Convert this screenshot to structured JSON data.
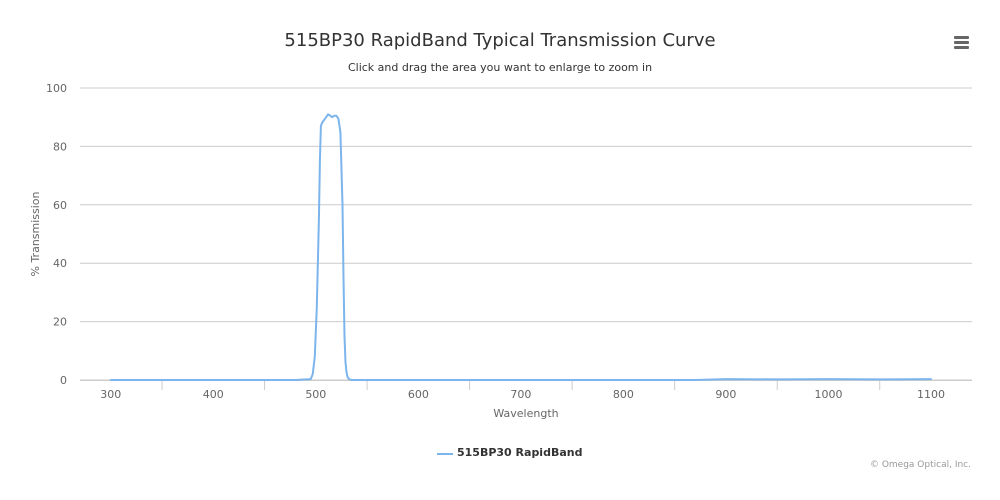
{
  "chart": {
    "title": "515BP30 RapidBand Typical Transmission Curve",
    "subtitle": "Click and drag the area you want to enlarge to zoom in",
    "menu_icon": "hamburger-menu-icon",
    "credits": "© Omega Optical, Inc.",
    "series_color": "#7cb5ec",
    "grid_color": "#cccccc"
  },
  "chart_data": {
    "type": "line",
    "title": "515BP30 RapidBand Typical Transmission Curve",
    "subtitle": "Click and drag the area you want to enlarge to zoom in",
    "xlabel": "Wavelength",
    "ylabel": "% Transmission",
    "xlim": [
      270,
      1140
    ],
    "ylim": [
      0,
      100
    ],
    "x_ticks": [
      300,
      400,
      500,
      600,
      700,
      800,
      900,
      1000,
      1100
    ],
    "y_ticks": [
      0,
      20,
      40,
      60,
      80,
      100
    ],
    "grid": true,
    "legend_position": "bottom-center",
    "series": [
      {
        "name": "515BP30 RapidBand",
        "color": "#7cb5ec",
        "x": [
          300,
          400,
          480,
          495,
          497,
          499,
          501,
          503,
          504,
          505,
          506,
          508,
          510,
          512,
          514,
          516,
          518,
          520,
          522,
          524,
          526,
          527,
          528,
          529,
          530,
          531,
          532,
          533,
          535,
          540,
          600,
          700,
          800,
          870,
          900,
          950,
          1000,
          1050,
          1100
        ],
        "y": [
          0,
          0,
          0,
          0.3,
          2,
          8,
          25,
          55,
          75,
          87,
          88,
          89,
          90,
          91,
          90.5,
          90,
          90.5,
          90.5,
          89.5,
          85,
          60,
          35,
          15,
          6,
          2.5,
          1,
          0.5,
          0.2,
          0,
          0,
          0,
          0,
          0,
          0,
          0.3,
          0.2,
          0.3,
          0.2,
          0.3
        ]
      }
    ]
  }
}
